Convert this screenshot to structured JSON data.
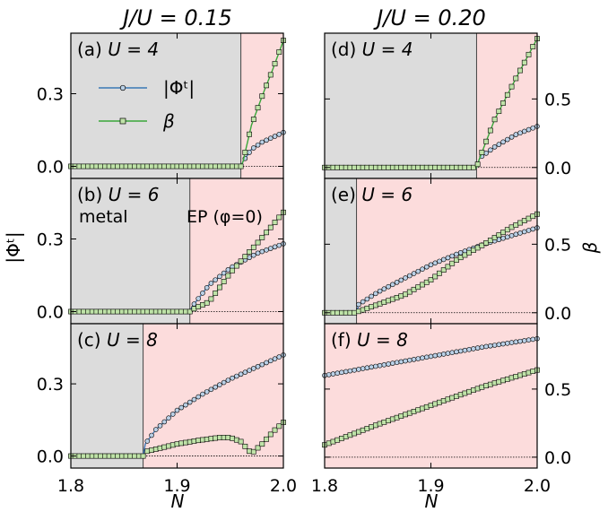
{
  "figure": {
    "left_title": "J/U = 0.15",
    "right_title": "J/U = 0.20",
    "x_label": "N",
    "left_y_label": "|Φᵗ|",
    "right_y_label": "β",
    "legend": [
      {
        "label": "|Φᵗ|",
        "marker": "circle",
        "color": "#3a78b5"
      },
      {
        "label": "β",
        "marker": "square",
        "color": "#39a639"
      }
    ],
    "annotations": {
      "metal": "metal",
      "ep": "EP (φ=0)"
    },
    "colors": {
      "metal_bg": "#dcdcdc",
      "ep_bg": "#fcdcdc",
      "phi_line": "#3a78b5",
      "phi_marker_fill": "#b9d0e6",
      "beta_line": "#39a639",
      "beta_marker_fill": "#bfe3a8"
    }
  },
  "chart_data": [
    {
      "type": "line",
      "panel": "(a)",
      "label": "U = 4",
      "column": "J/U = 0.15",
      "xlim": [
        1.8,
        2.0
      ],
      "left_ylim": [
        -0.05,
        0.55
      ],
      "left_yticks": [
        0.0,
        0.3
      ],
      "boundary_x": 1.96,
      "series": [
        {
          "name": "|Φᵗ|",
          "axis": "left",
          "points": [
            [
              1.8,
              0
            ],
            [
              1.96,
              0
            ],
            [
              1.962,
              0.02
            ],
            [
              1.97,
              0.07
            ],
            [
              1.98,
              0.1
            ],
            [
              1.99,
              0.12
            ],
            [
              2.0,
              0.14
            ]
          ]
        },
        {
          "name": "β",
          "axis": "left",
          "points": [
            [
              1.8,
              0
            ],
            [
              1.96,
              0
            ],
            [
              1.962,
              0.02
            ],
            [
              1.97,
              0.17
            ],
            [
              1.98,
              0.29
            ],
            [
              1.99,
              0.4
            ],
            [
              2.0,
              0.52
            ]
          ]
        }
      ]
    },
    {
      "type": "line",
      "panel": "(b)",
      "label": "U = 6",
      "column": "J/U = 0.15",
      "xlim": [
        1.8,
        2.0
      ],
      "left_ylim": [
        -0.05,
        0.55
      ],
      "left_yticks": [
        0.0,
        0.3
      ],
      "boundary_x": 1.912,
      "series": [
        {
          "name": "|Φᵗ|",
          "axis": "left",
          "points": [
            [
              1.8,
              0
            ],
            [
              1.912,
              0
            ],
            [
              1.914,
              0.02
            ],
            [
              1.93,
              0.11
            ],
            [
              1.95,
              0.18
            ],
            [
              1.975,
              0.24
            ],
            [
              2.0,
              0.28
            ]
          ]
        },
        {
          "name": "β",
          "axis": "left",
          "points": [
            [
              1.8,
              0
            ],
            [
              1.912,
              0
            ],
            [
              1.915,
              0.01
            ],
            [
              1.93,
              0.04
            ],
            [
              1.95,
              0.16
            ],
            [
              1.975,
              0.28
            ],
            [
              2.0,
              0.41
            ]
          ]
        }
      ]
    },
    {
      "type": "line",
      "panel": "(c)",
      "label": "U = 8",
      "column": "J/U = 0.15",
      "xlim": [
        1.8,
        2.0
      ],
      "left_ylim": [
        -0.05,
        0.55
      ],
      "left_yticks": [
        0.0,
        0.3
      ],
      "boundary_x": 1.868,
      "series": [
        {
          "name": "|Φᵗ|",
          "axis": "left",
          "points": [
            [
              1.8,
              0
            ],
            [
              1.868,
              0
            ],
            [
              1.87,
              0.05
            ],
            [
              1.88,
              0.11
            ],
            [
              1.9,
              0.19
            ],
            [
              1.925,
              0.26
            ],
            [
              1.95,
              0.32
            ],
            [
              1.975,
              0.37
            ],
            [
              2.0,
              0.42
            ]
          ]
        },
        {
          "name": "β",
          "axis": "left",
          "points": [
            [
              1.8,
              0
            ],
            [
              1.868,
              0
            ],
            [
              1.872,
              0.02
            ],
            [
              1.9,
              0.05
            ],
            [
              1.92,
              0.065
            ],
            [
              1.94,
              0.077
            ],
            [
              1.95,
              0.077
            ],
            [
              1.96,
              0.06
            ],
            [
              1.97,
              0.01
            ],
            [
              1.98,
              0.05
            ],
            [
              1.99,
              0.1
            ],
            [
              2.0,
              0.14
            ]
          ]
        }
      ]
    },
    {
      "type": "line",
      "panel": "(d)",
      "label": "U = 4",
      "column": "J/U = 0.20",
      "xlim": [
        1.8,
        2.0
      ],
      "right_ylim": [
        -0.08,
        0.98
      ],
      "right_yticks": [
        0.0,
        0.5
      ],
      "boundary_x": 1.943,
      "series": [
        {
          "name": "|Φᵗ|",
          "axis": "right",
          "points": [
            [
              1.8,
              0
            ],
            [
              1.943,
              0
            ],
            [
              1.946,
              0.07
            ],
            [
              1.96,
              0.15
            ],
            [
              1.98,
              0.24
            ],
            [
              2.0,
              0.3
            ]
          ]
        },
        {
          "name": "β",
          "axis": "right",
          "points": [
            [
              1.8,
              0
            ],
            [
              1.943,
              0
            ],
            [
              1.946,
              0.07
            ],
            [
              1.96,
              0.35
            ],
            [
              1.98,
              0.65
            ],
            [
              2.0,
              0.94
            ]
          ]
        }
      ]
    },
    {
      "type": "line",
      "panel": "(e)",
      "label": "U = 6",
      "column": "J/U = 0.20",
      "xlim": [
        1.8,
        2.0
      ],
      "right_ylim": [
        -0.08,
        0.98
      ],
      "right_yticks": [
        0.0,
        0.5
      ],
      "boundary_x": 1.83,
      "series": [
        {
          "name": "|Φᵗ|",
          "axis": "right",
          "points": [
            [
              1.8,
              0
            ],
            [
              1.83,
              0
            ],
            [
              1.832,
              0.06
            ],
            [
              1.85,
              0.15
            ],
            [
              1.875,
              0.25
            ],
            [
              1.9,
              0.35
            ],
            [
              1.925,
              0.43
            ],
            [
              1.95,
              0.5
            ],
            [
              1.975,
              0.56
            ],
            [
              2.0,
              0.62
            ]
          ]
        },
        {
          "name": "β",
          "axis": "right",
          "points": [
            [
              1.8,
              0
            ],
            [
              1.83,
              0
            ],
            [
              1.832,
              0.01
            ],
            [
              1.85,
              0.06
            ],
            [
              1.875,
              0.13
            ],
            [
              1.9,
              0.24
            ],
            [
              1.925,
              0.39
            ],
            [
              1.95,
              0.5
            ],
            [
              1.975,
              0.62
            ],
            [
              2.0,
              0.72
            ]
          ]
        }
      ]
    },
    {
      "type": "line",
      "panel": "(f)",
      "label": "U = 8",
      "column": "J/U = 0.20",
      "xlim": [
        1.8,
        2.0
      ],
      "right_ylim": [
        -0.08,
        0.98
      ],
      "right_yticks": [
        0.0,
        0.5
      ],
      "boundary_x": 1.8,
      "series": [
        {
          "name": "|Φᵗ|",
          "axis": "right",
          "points": [
            [
              1.8,
              0.6
            ],
            [
              1.85,
              0.67
            ],
            [
              1.9,
              0.74
            ],
            [
              1.95,
              0.81
            ],
            [
              2.0,
              0.87
            ]
          ]
        },
        {
          "name": "β",
          "axis": "right",
          "points": [
            [
              1.8,
              0.09
            ],
            [
              1.85,
              0.24
            ],
            [
              1.9,
              0.38
            ],
            [
              1.95,
              0.52
            ],
            [
              2.0,
              0.64
            ]
          ]
        }
      ]
    }
  ]
}
